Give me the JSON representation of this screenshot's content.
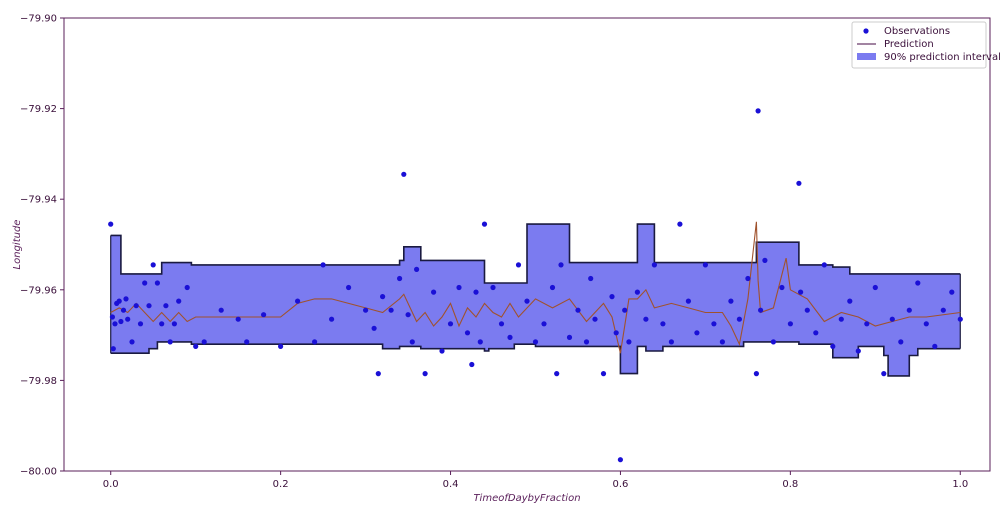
{
  "chart_data": {
    "type": "scatter",
    "xlabel": "TimeofDaybyFraction",
    "ylabel": "Longitude",
    "xlim": [
      -0.055,
      1.035
    ],
    "ylim": [
      -80.0,
      -79.9
    ],
    "x_ticks": [
      0.0,
      0.2,
      0.4,
      0.6,
      0.8,
      1.0
    ],
    "x_tick_labels": [
      "0.0",
      "0.2",
      "0.4",
      "0.6",
      "0.8",
      "1.0"
    ],
    "y_ticks": [
      -80.0,
      -79.98,
      -79.96,
      -79.94,
      -79.92,
      -79.9
    ],
    "y_tick_labels": [
      "−80.00",
      "−79.98",
      "−79.96",
      "−79.94",
      "−79.92",
      "−79.90"
    ],
    "grid": false,
    "legend_position": "top-right",
    "legend": [
      {
        "label": "Observations",
        "kind": "marker"
      },
      {
        "label": "Prediction",
        "kind": "line"
      },
      {
        "label": "90% prediction interval",
        "kind": "patch"
      }
    ],
    "colors": {
      "observations": "#1a10d6",
      "prediction": "#a0522d",
      "interval_fill": "#7b7bf0",
      "interval_edge": "#1a1a40",
      "spines": "#5a1f5a"
    },
    "interval": {
      "x": [
        0.0,
        0.006,
        0.012,
        0.045,
        0.055,
        0.06,
        0.095,
        0.155,
        0.3,
        0.32,
        0.33,
        0.34,
        0.345,
        0.36,
        0.365,
        0.43,
        0.44,
        0.445,
        0.47,
        0.475,
        0.49,
        0.5,
        0.53,
        0.54,
        0.595,
        0.6,
        0.615,
        0.62,
        0.63,
        0.64,
        0.65,
        0.68,
        0.7,
        0.72,
        0.745,
        0.76,
        0.78,
        0.79,
        0.81,
        0.84,
        0.85,
        0.87,
        0.88,
        0.9,
        0.91,
        0.915,
        0.94,
        0.95,
        1.0
      ],
      "upper": [
        -79.948,
        -79.948,
        -79.9565,
        -79.9565,
        -79.9565,
        -79.954,
        -79.9545,
        -79.9545,
        -79.9545,
        -79.9545,
        -79.9545,
        -79.9535,
        -79.9505,
        -79.9505,
        -79.9535,
        -79.9535,
        -79.9585,
        -79.9585,
        -79.9585,
        -79.9585,
        -79.9455,
        -79.9455,
        -79.9455,
        -79.954,
        -79.954,
        -79.954,
        -79.954,
        -79.9455,
        -79.9455,
        -79.954,
        -79.954,
        -79.954,
        -79.954,
        -79.954,
        -79.954,
        -79.9495,
        -79.9495,
        -79.9495,
        -79.9545,
        -79.9545,
        -79.955,
        -79.9565,
        -79.9565,
        -79.9565,
        -79.9565,
        -79.9565,
        -79.9565,
        -79.9565,
        -79.9565
      ],
      "lower": [
        -79.974,
        -79.974,
        -79.974,
        -79.973,
        -79.9715,
        -79.9715,
        -79.972,
        -79.972,
        -79.972,
        -79.973,
        -79.973,
        -79.9725,
        -79.9725,
        -79.9725,
        -79.973,
        -79.973,
        -79.9735,
        -79.973,
        -79.973,
        -79.972,
        -79.972,
        -79.9725,
        -79.9725,
        -79.9725,
        -79.9725,
        -79.9785,
        -79.9785,
        -79.9725,
        -79.9735,
        -79.9735,
        -79.9725,
        -79.9725,
        -79.9725,
        -79.9725,
        -79.9715,
        -79.9715,
        -79.9715,
        -79.9715,
        -79.972,
        -79.972,
        -79.975,
        -79.975,
        -79.9725,
        -79.9725,
        -79.9745,
        -79.979,
        -79.9745,
        -79.973,
        -79.973
      ]
    },
    "series": [
      {
        "name": "Prediction",
        "x": [
          0.0,
          0.01,
          0.02,
          0.03,
          0.04,
          0.05,
          0.06,
          0.07,
          0.08,
          0.09,
          0.1,
          0.15,
          0.2,
          0.22,
          0.24,
          0.26,
          0.28,
          0.3,
          0.32,
          0.34,
          0.345,
          0.36,
          0.37,
          0.38,
          0.39,
          0.4,
          0.41,
          0.42,
          0.43,
          0.44,
          0.45,
          0.46,
          0.47,
          0.48,
          0.5,
          0.52,
          0.54,
          0.56,
          0.58,
          0.59,
          0.6,
          0.605,
          0.61,
          0.62,
          0.63,
          0.64,
          0.66,
          0.68,
          0.7,
          0.72,
          0.73,
          0.74,
          0.75,
          0.76,
          0.762,
          0.765,
          0.78,
          0.795,
          0.8,
          0.82,
          0.84,
          0.86,
          0.88,
          0.9,
          0.92,
          0.94,
          0.96,
          1.0
        ],
        "y": [
          -79.965,
          -79.964,
          -79.965,
          -79.963,
          -79.965,
          -79.967,
          -79.965,
          -79.967,
          -79.965,
          -79.967,
          -79.966,
          -79.966,
          -79.966,
          -79.963,
          -79.962,
          -79.962,
          -79.963,
          -79.964,
          -79.965,
          -79.962,
          -79.961,
          -79.967,
          -79.965,
          -79.968,
          -79.966,
          -79.963,
          -79.968,
          -79.964,
          -79.966,
          -79.963,
          -79.965,
          -79.966,
          -79.963,
          -79.966,
          -79.962,
          -79.964,
          -79.962,
          -79.967,
          -79.963,
          -79.966,
          -79.974,
          -79.968,
          -79.962,
          -79.962,
          -79.96,
          -79.964,
          -79.963,
          -79.964,
          -79.965,
          -79.965,
          -79.968,
          -79.972,
          -79.962,
          -79.945,
          -79.958,
          -79.965,
          -79.964,
          -79.953,
          -79.96,
          -79.962,
          -79.967,
          -79.965,
          -79.966,
          -79.968,
          -79.967,
          -79.966,
          -79.966,
          -79.965
        ]
      },
      {
        "name": "Observations",
        "x": [
          0.0,
          0.002,
          0.003,
          0.005,
          0.007,
          0.01,
          0.012,
          0.015,
          0.018,
          0.02,
          0.025,
          0.03,
          0.035,
          0.04,
          0.045,
          0.05,
          0.055,
          0.06,
          0.065,
          0.07,
          0.075,
          0.08,
          0.09,
          0.1,
          0.11,
          0.13,
          0.15,
          0.16,
          0.18,
          0.2,
          0.22,
          0.24,
          0.25,
          0.26,
          0.28,
          0.3,
          0.31,
          0.315,
          0.32,
          0.33,
          0.34,
          0.345,
          0.35,
          0.355,
          0.36,
          0.37,
          0.38,
          0.39,
          0.4,
          0.41,
          0.42,
          0.425,
          0.43,
          0.435,
          0.44,
          0.45,
          0.46,
          0.47,
          0.48,
          0.49,
          0.5,
          0.51,
          0.52,
          0.525,
          0.53,
          0.54,
          0.55,
          0.56,
          0.565,
          0.57,
          0.58,
          0.59,
          0.595,
          0.6,
          0.605,
          0.61,
          0.62,
          0.63,
          0.64,
          0.65,
          0.66,
          0.67,
          0.68,
          0.69,
          0.7,
          0.71,
          0.72,
          0.73,
          0.74,
          0.75,
          0.76,
          0.762,
          0.765,
          0.77,
          0.78,
          0.79,
          0.8,
          0.81,
          0.812,
          0.82,
          0.83,
          0.84,
          0.85,
          0.86,
          0.87,
          0.88,
          0.89,
          0.9,
          0.91,
          0.92,
          0.93,
          0.94,
          0.95,
          0.96,
          0.97,
          0.98,
          0.99,
          1.0
        ],
        "y": [
          -79.9455,
          -79.966,
          -79.973,
          -79.9675,
          -79.963,
          -79.9625,
          -79.967,
          -79.9645,
          -79.962,
          -79.9665,
          -79.9715,
          -79.9635,
          -79.9675,
          -79.9585,
          -79.9635,
          -79.9545,
          -79.9585,
          -79.9675,
          -79.9635,
          -79.9715,
          -79.9675,
          -79.9625,
          -79.9595,
          -79.9725,
          -79.9715,
          -79.9645,
          -79.9665,
          -79.9715,
          -79.9655,
          -79.9725,
          -79.9625,
          -79.9715,
          -79.9545,
          -79.9665,
          -79.9595,
          -79.9645,
          -79.9685,
          -79.9785,
          -79.9615,
          -79.9645,
          -79.9575,
          -79.9345,
          -79.9655,
          -79.9715,
          -79.9555,
          -79.9785,
          -79.9605,
          -79.9735,
          -79.9675,
          -79.9595,
          -79.9695,
          -79.9765,
          -79.9605,
          -79.9715,
          -79.9455,
          -79.9595,
          -79.9675,
          -79.9705,
          -79.9545,
          -79.9625,
          -79.9715,
          -79.9675,
          -79.9595,
          -79.9785,
          -79.9545,
          -79.9705,
          -79.9645,
          -79.9715,
          -79.9575,
          -79.9665,
          -79.9785,
          -79.9615,
          -79.9695,
          -79.9975,
          -79.9645,
          -79.9715,
          -79.9605,
          -79.9665,
          -79.9545,
          -79.9675,
          -79.9715,
          -79.9455,
          -79.9625,
          -79.9695,
          -79.9545,
          -79.9675,
          -79.9715,
          -79.9625,
          -79.9665,
          -79.9575,
          -79.9785,
          -79.9205,
          -79.9645,
          -79.9535,
          -79.9715,
          -79.9595,
          -79.9675,
          -79.9365,
          -79.9605,
          -79.9645,
          -79.9695,
          -79.9545,
          -79.9725,
          -79.9665,
          -79.9625,
          -79.9735,
          -79.9675,
          -79.9595,
          -79.9785,
          -79.9665,
          -79.9715,
          -79.9645,
          -79.9585,
          -79.9675,
          -79.9725,
          -79.9645,
          -79.9605,
          -79.9665
        ]
      }
    ]
  }
}
